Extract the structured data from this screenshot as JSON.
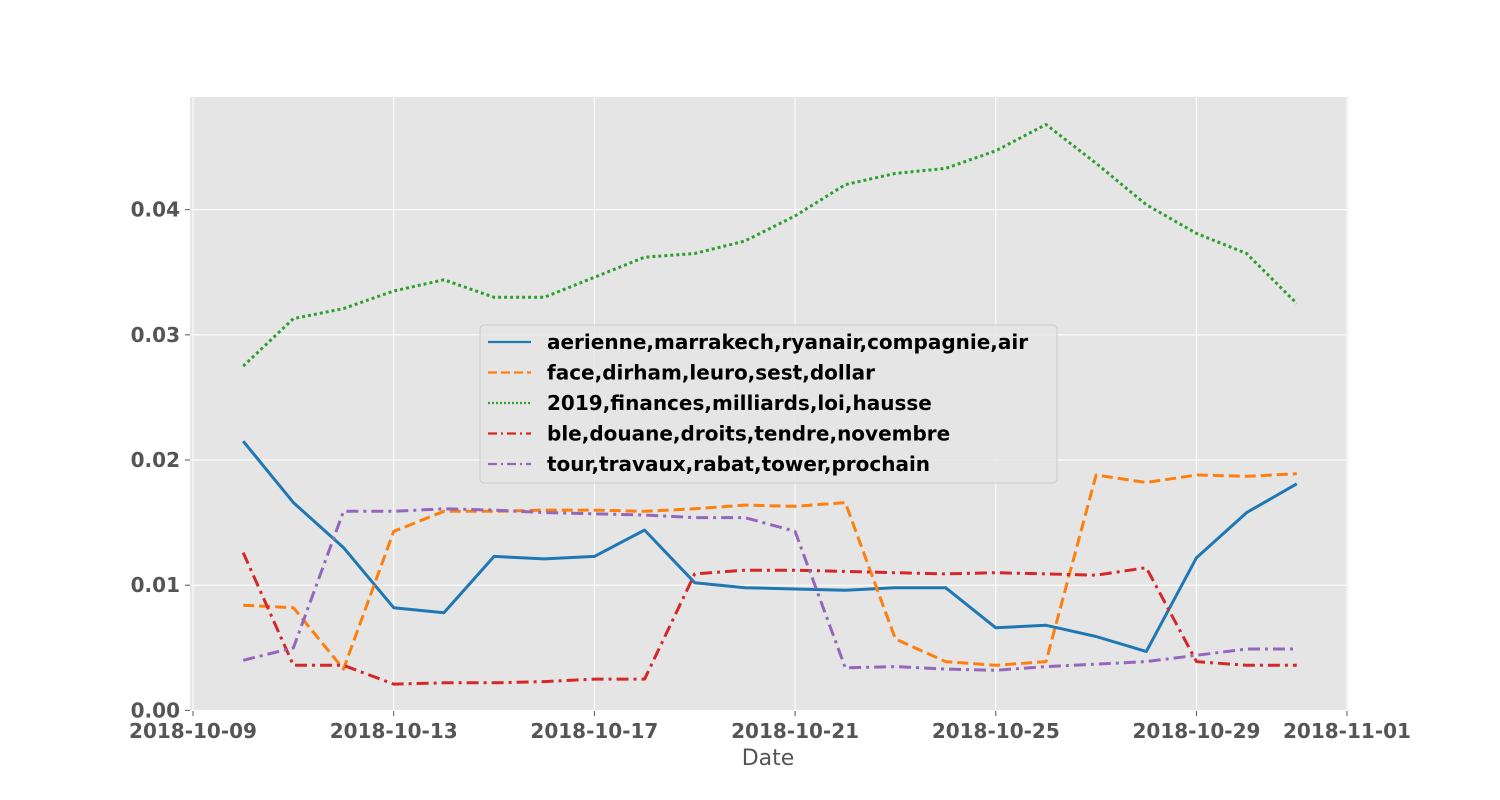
{
  "chart_data": {
    "type": "line",
    "title": "",
    "xlabel": "Date",
    "ylabel": "",
    "xlim": [
      "2018-10-09",
      "2018-11-01"
    ],
    "ylim": [
      0.0,
      0.049
    ],
    "grid": true,
    "legend_position": "center",
    "x_ticks": [
      "2018-10-09",
      "2018-10-13",
      "2018-10-17",
      "2018-10-21",
      "2018-10-25",
      "2018-10-29",
      "2018-11-01"
    ],
    "y_ticks": [
      "0.00",
      "0.01",
      "0.02",
      "0.03",
      "0.04"
    ],
    "x": [
      "2018-10-10",
      "2018-10-11",
      "2018-10-12",
      "2018-10-13",
      "2018-10-14",
      "2018-10-15",
      "2018-10-16",
      "2018-10-17",
      "2018-10-18",
      "2018-10-19",
      "2018-10-20",
      "2018-10-21",
      "2018-10-22",
      "2018-10-23",
      "2018-10-24",
      "2018-10-25",
      "2018-10-26",
      "2018-10-27",
      "2018-10-28",
      "2018-10-29",
      "2018-10-30",
      "2018-10-31"
    ],
    "series": [
      {
        "name": "aerienne,marrakech,ryanair,compagnie,air",
        "color": "#1f77b4",
        "style": "solid",
        "values": [
          0.0215,
          0.0166,
          0.013,
          0.0082,
          0.0078,
          0.0123,
          0.0121,
          0.0123,
          0.0144,
          0.0102,
          0.0098,
          0.0097,
          0.0096,
          0.0098,
          0.0098,
          0.0066,
          0.0068,
          0.0059,
          0.0047,
          0.0122,
          0.0158,
          0.0181
        ]
      },
      {
        "name": "face,dirham,leuro,sest,dollar",
        "color": "#ff7f0e",
        "style": "dashed",
        "values": [
          0.0084,
          0.0082,
          0.0033,
          0.0143,
          0.0159,
          0.0159,
          0.016,
          0.016,
          0.0159,
          0.0161,
          0.0164,
          0.0163,
          0.0166,
          0.0057,
          0.0039,
          0.0036,
          0.0039,
          0.0188,
          0.0182,
          0.0188,
          0.0187,
          0.0189
        ]
      },
      {
        "name": "2019,finances,milliards,loi,hausse",
        "color": "#2ca02c",
        "style": "dotted",
        "values": [
          0.0275,
          0.0313,
          0.0321,
          0.0335,
          0.0344,
          0.033,
          0.033,
          0.0346,
          0.0362,
          0.0365,
          0.0375,
          0.0395,
          0.042,
          0.0429,
          0.0433,
          0.0447,
          0.0468,
          0.0437,
          0.0404,
          0.0381,
          0.0365,
          0.0325
        ]
      },
      {
        "name": "ble,douane,droits,tendre,novembre",
        "color": "#d62728",
        "style": "dashdot",
        "values": [
          0.0126,
          0.0036,
          0.0036,
          0.0021,
          0.0022,
          0.0022,
          0.0023,
          0.0025,
          0.0025,
          0.0109,
          0.0112,
          0.0112,
          0.0111,
          0.011,
          0.0109,
          0.011,
          0.0109,
          0.0108,
          0.0114,
          0.0039,
          0.0036,
          0.0036
        ]
      },
      {
        "name": "tour,travaux,rabat,tower,prochain",
        "color": "#9467bd",
        "style": "dashdot",
        "values": [
          0.004,
          0.005,
          0.0159,
          0.0159,
          0.0161,
          0.016,
          0.0158,
          0.0157,
          0.0156,
          0.0154,
          0.0154,
          0.0143,
          0.0034,
          0.0035,
          0.0033,
          0.0032,
          0.0035,
          0.0037,
          0.0039,
          0.0044,
          0.0049,
          0.0049
        ]
      }
    ]
  }
}
